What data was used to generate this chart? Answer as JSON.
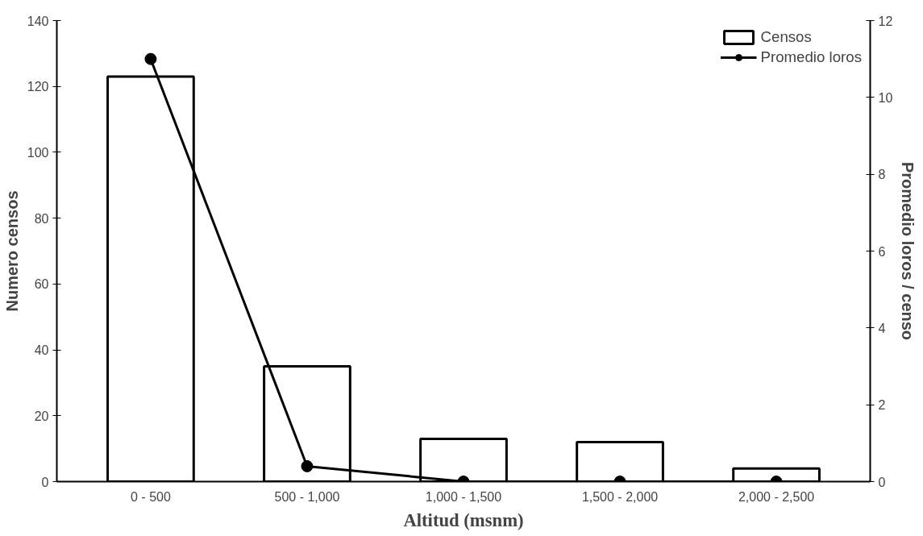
{
  "chart_data": {
    "type": "bar",
    "xlabel": "Altitud (msnm)",
    "ylabel": "Numero censos",
    "y2label": "Promedio loros / censo",
    "categories": [
      "0 - 500",
      "500 - 1,000",
      "1,000 - 1,500",
      "1,500 - 2,000",
      "2,000 - 2,500"
    ],
    "series": [
      {
        "name": "Censos",
        "color": "#ffffff",
        "values": [
          123,
          35,
          13,
          12,
          4
        ]
      },
      {
        "name": "Promedio loros",
        "type": "line",
        "axis": "y2",
        "color": "#000000",
        "marker": "circle",
        "values": [
          11,
          0.4,
          0,
          0,
          0
        ]
      }
    ],
    "ylim": [
      0,
      140
    ],
    "yticks": [
      0,
      20,
      40,
      60,
      80,
      100,
      120,
      140
    ],
    "y2lim": [
      0,
      12
    ],
    "y2ticks": [
      0,
      2,
      4,
      6,
      8,
      10,
      12
    ],
    "grid": false,
    "legend": "top right"
  }
}
